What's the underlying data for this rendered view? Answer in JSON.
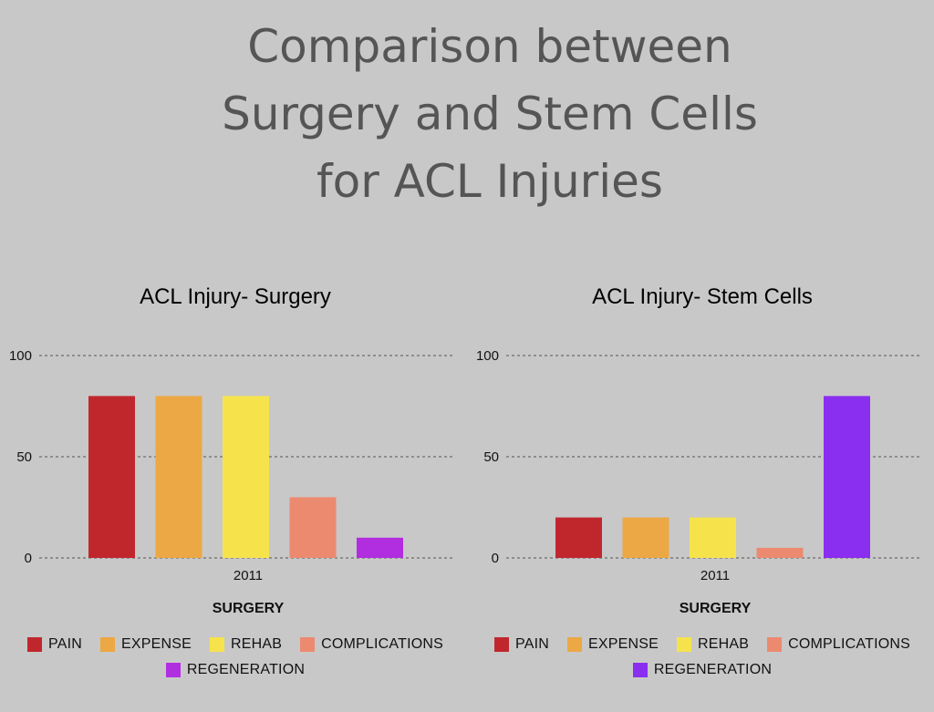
{
  "page": {
    "title_lines": [
      "Comparison between",
      "Surgery and Stem Cells",
      "for ACL Injuries"
    ]
  },
  "chart_data": [
    {
      "type": "bar",
      "title": "ACL Injury- Surgery",
      "categories": [
        "2011"
      ],
      "xlabel": "SURGERY",
      "ylabel": "",
      "ylim": [
        0,
        100
      ],
      "yticks": [
        "0",
        "50",
        "100"
      ],
      "grid": true,
      "legend_position": "bottom",
      "series": [
        {
          "name": "PAIN",
          "values": [
            80
          ],
          "color": "#c0272d"
        },
        {
          "name": "EXPENSE",
          "values": [
            80
          ],
          "color": "#eba844"
        },
        {
          "name": "REHAB",
          "values": [
            80
          ],
          "color": "#f6e34c"
        },
        {
          "name": "COMPLICATIONS",
          "values": [
            30
          ],
          "color": "#ec8a70"
        },
        {
          "name": "REGENERATION",
          "values": [
            10
          ],
          "color": "#b12de0"
        }
      ]
    },
    {
      "type": "bar",
      "title": "ACL Injury- Stem Cells",
      "categories": [
        "2011"
      ],
      "xlabel": "SURGERY",
      "ylabel": "",
      "ylim": [
        0,
        100
      ],
      "yticks": [
        "0",
        "50",
        "100"
      ],
      "grid": true,
      "legend_position": "bottom",
      "series": [
        {
          "name": "PAIN",
          "values": [
            20
          ],
          "color": "#c0272d"
        },
        {
          "name": "EXPENSE",
          "values": [
            20
          ],
          "color": "#eba844"
        },
        {
          "name": "REHAB",
          "values": [
            20
          ],
          "color": "#f6e34c"
        },
        {
          "name": "COMPLICATIONS",
          "values": [
            5
          ],
          "color": "#ec8a70"
        },
        {
          "name": "REGENERATION",
          "values": [
            80
          ],
          "color": "#8a2ef0"
        }
      ]
    }
  ]
}
